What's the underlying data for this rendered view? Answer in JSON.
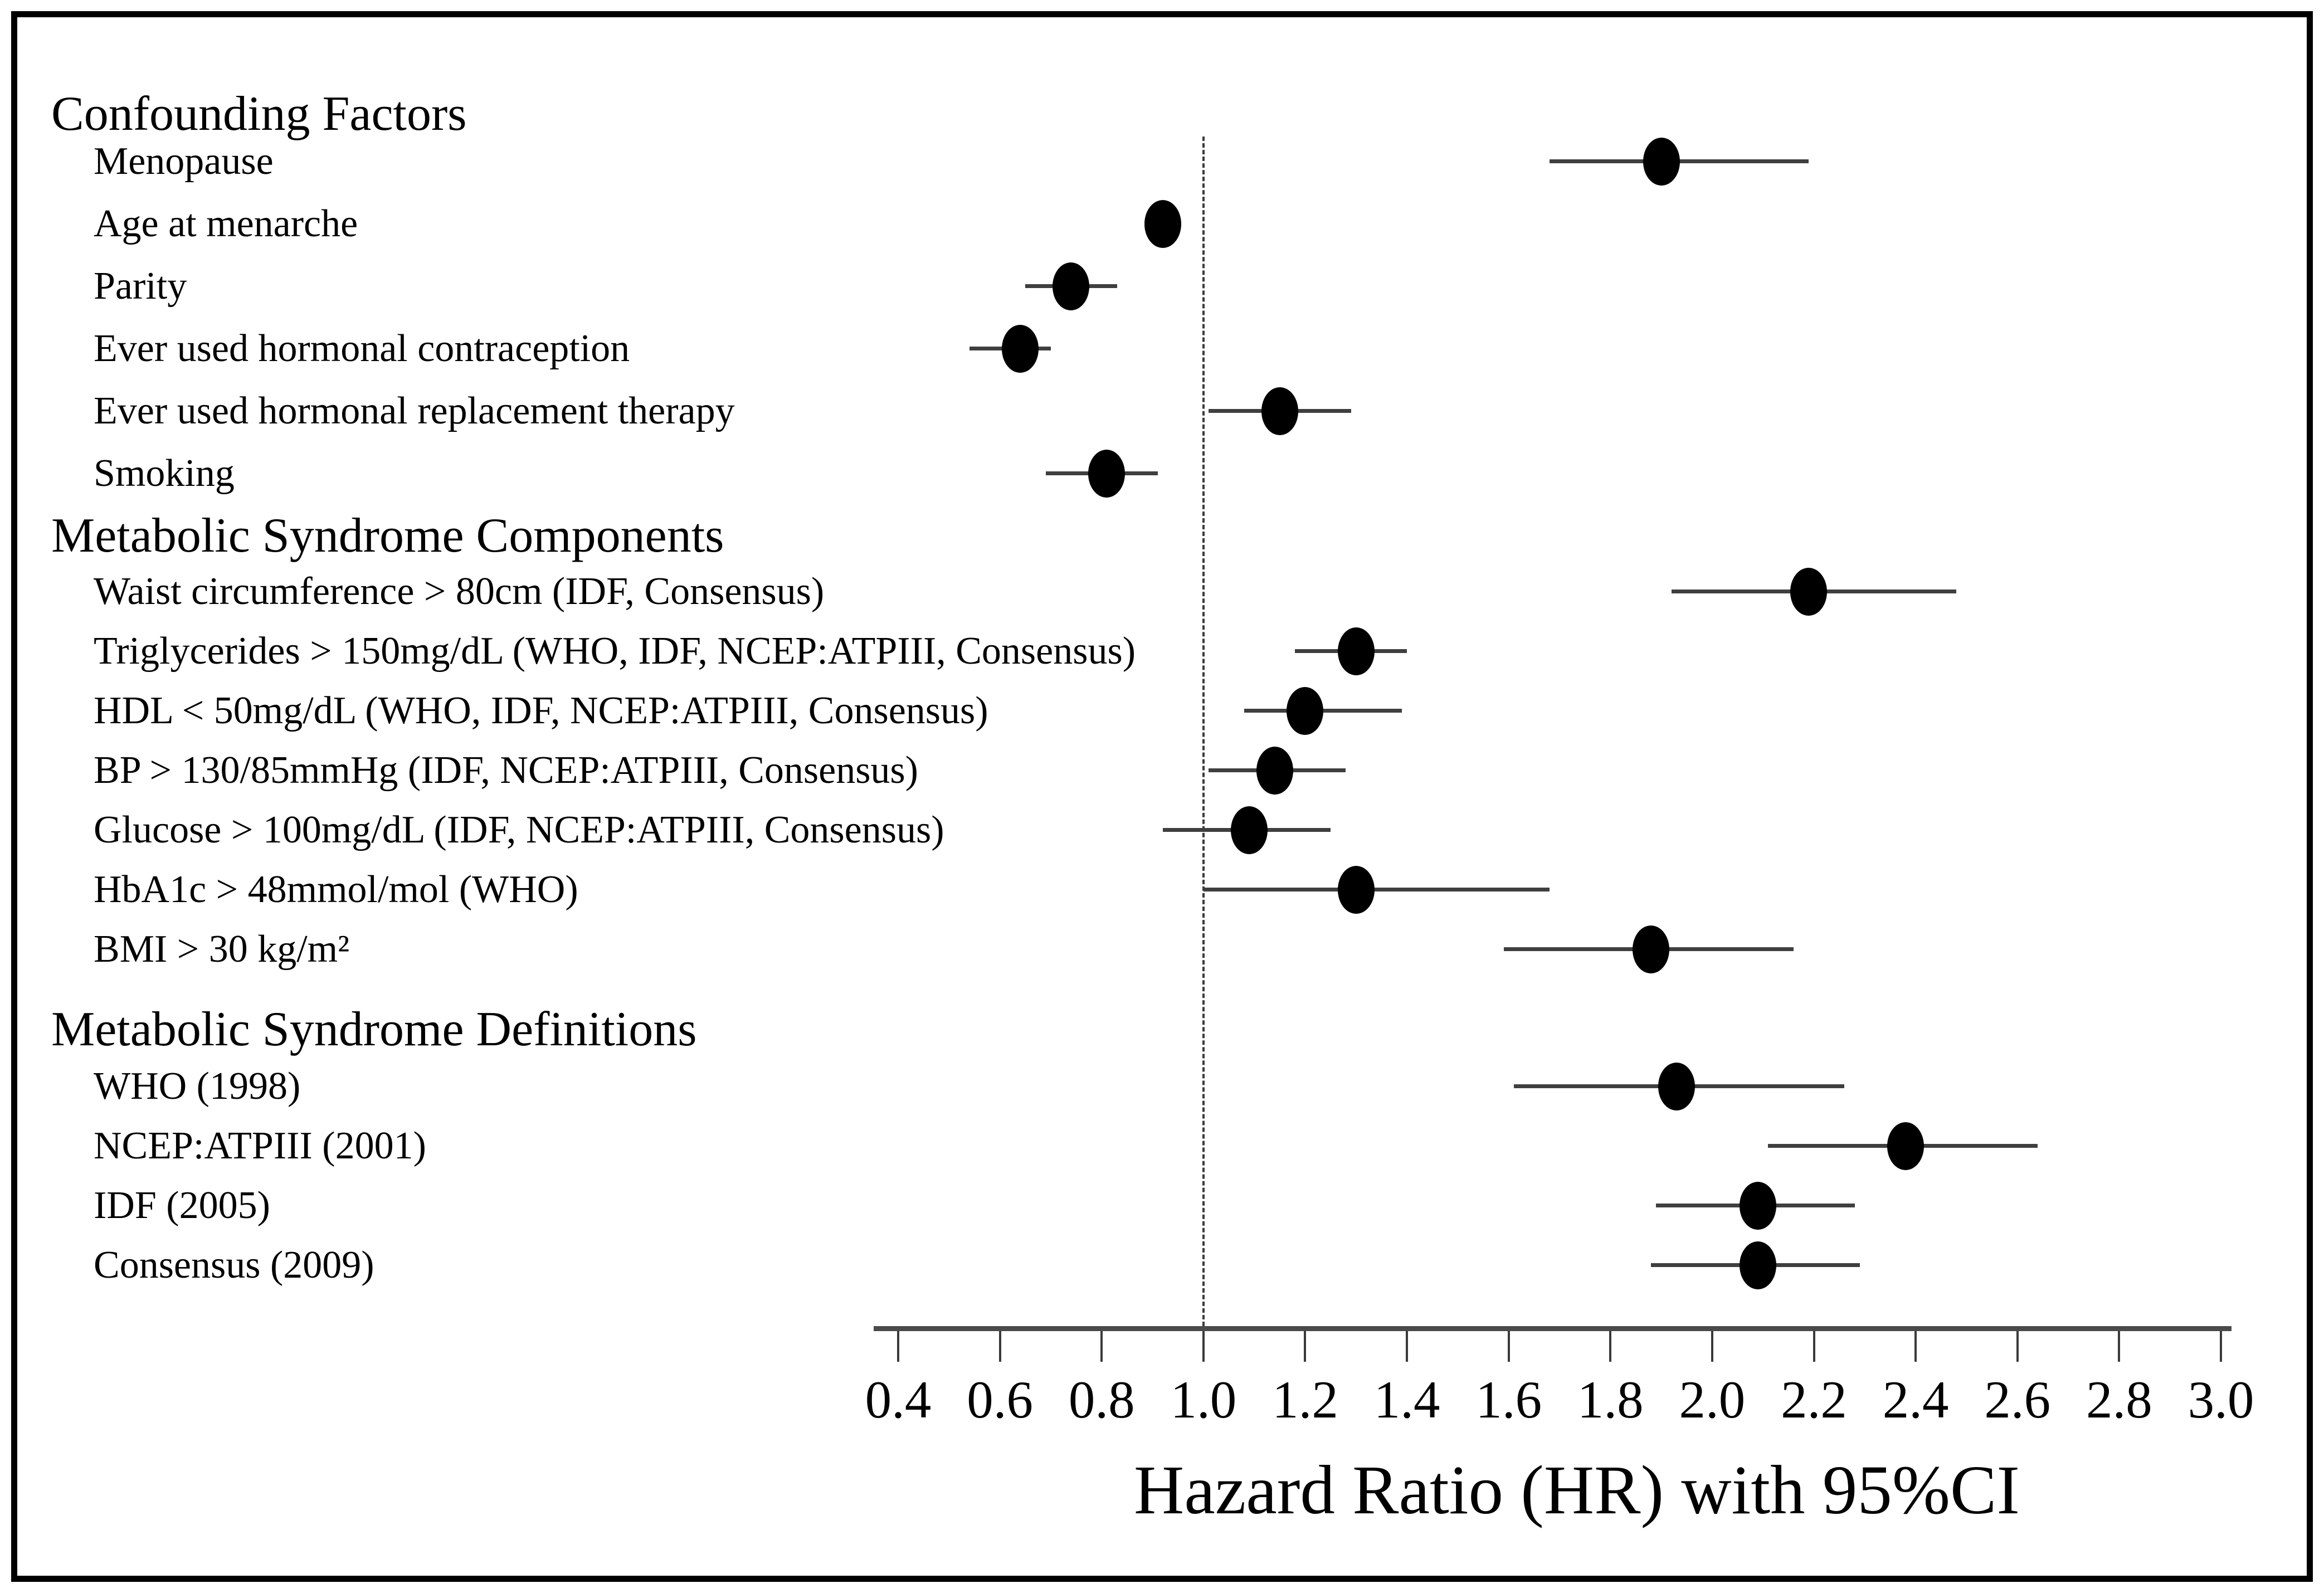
{
  "chart_data": {
    "type": "forest",
    "title": "",
    "xlabel": "Hazard Ratio (HR) with 95%CI",
    "ylabel": "",
    "xlim": [
      0.4,
      3.0
    ],
    "x_ticks": [
      0.4,
      0.6,
      0.8,
      1.0,
      1.2,
      1.4,
      1.6,
      1.8,
      2.0,
      2.2,
      2.4,
      2.6,
      2.8,
      3.0
    ],
    "reference_line_x": 1.0,
    "grid": "off",
    "marker_color": "#000000",
    "line_color": "#3f3f3f",
    "groups": [
      {
        "header": "Confounding Factors",
        "rows": [
          {
            "label": "Menopause",
            "hr": 1.9,
            "ci_low": 1.68,
            "ci_high": 2.19
          },
          {
            "label": "Age at menarche",
            "hr": 0.92,
            "ci_low": 0.89,
            "ci_high": 0.95
          },
          {
            "label": "Parity",
            "hr": 0.74,
            "ci_low": 0.65,
            "ci_high": 0.83
          },
          {
            "label": "Ever used hormonal contraception",
            "hr": 0.64,
            "ci_low": 0.54,
            "ci_high": 0.7
          },
          {
            "label": "Ever used hormonal replacement therapy",
            "hr": 1.15,
            "ci_low": 1.01,
            "ci_high": 1.29
          },
          {
            "label": "Smoking",
            "hr": 0.81,
            "ci_low": 0.69,
            "ci_high": 0.91
          }
        ]
      },
      {
        "header": "Metabolic Syndrome Components",
        "rows": [
          {
            "label": "Waist circumference > 80cm (IDF, Consensus)",
            "hr": 2.19,
            "ci_low": 1.92,
            "ci_high": 2.48
          },
          {
            "label": "Triglycerides > 150mg/dL (WHO, IDF, NCEP:ATPIII, Consensus)",
            "hr": 1.3,
            "ci_low": 1.18,
            "ci_high": 1.4
          },
          {
            "label": "HDL < 50mg/dL (WHO, IDF, NCEP:ATPIII, Consensus)",
            "hr": 1.2,
            "ci_low": 1.08,
            "ci_high": 1.39
          },
          {
            "label": "BP > 130/85mmHg (IDF, NCEP:ATPIII, Consensus)",
            "hr": 1.14,
            "ci_low": 1.01,
            "ci_high": 1.28
          },
          {
            "label": "Glucose > 100mg/dL (IDF, NCEP:ATPIII, Consensus)",
            "hr": 1.09,
            "ci_low": 0.92,
            "ci_high": 1.25
          },
          {
            "label": "HbA1c > 48mmol/mol (WHO)",
            "hr": 1.3,
            "ci_low": 1.0,
            "ci_high": 1.68
          },
          {
            "label": "BMI > 30 kg/m²",
            "hr": 1.88,
            "ci_low": 1.59,
            "ci_high": 2.16
          }
        ]
      },
      {
        "header": "Metabolic Syndrome Definitions",
        "rows": [
          {
            "label": "WHO (1998)",
            "hr": 1.93,
            "ci_low": 1.61,
            "ci_high": 2.26
          },
          {
            "label": "NCEP:ATPIII (2001)",
            "hr": 2.38,
            "ci_low": 2.11,
            "ci_high": 2.64
          },
          {
            "label": "IDF (2005)",
            "hr": 2.09,
            "ci_low": 1.89,
            "ci_high": 2.28
          },
          {
            "label": "Consensus (2009)",
            "hr": 2.09,
            "ci_low": 1.88,
            "ci_high": 2.29
          }
        ]
      }
    ]
  }
}
